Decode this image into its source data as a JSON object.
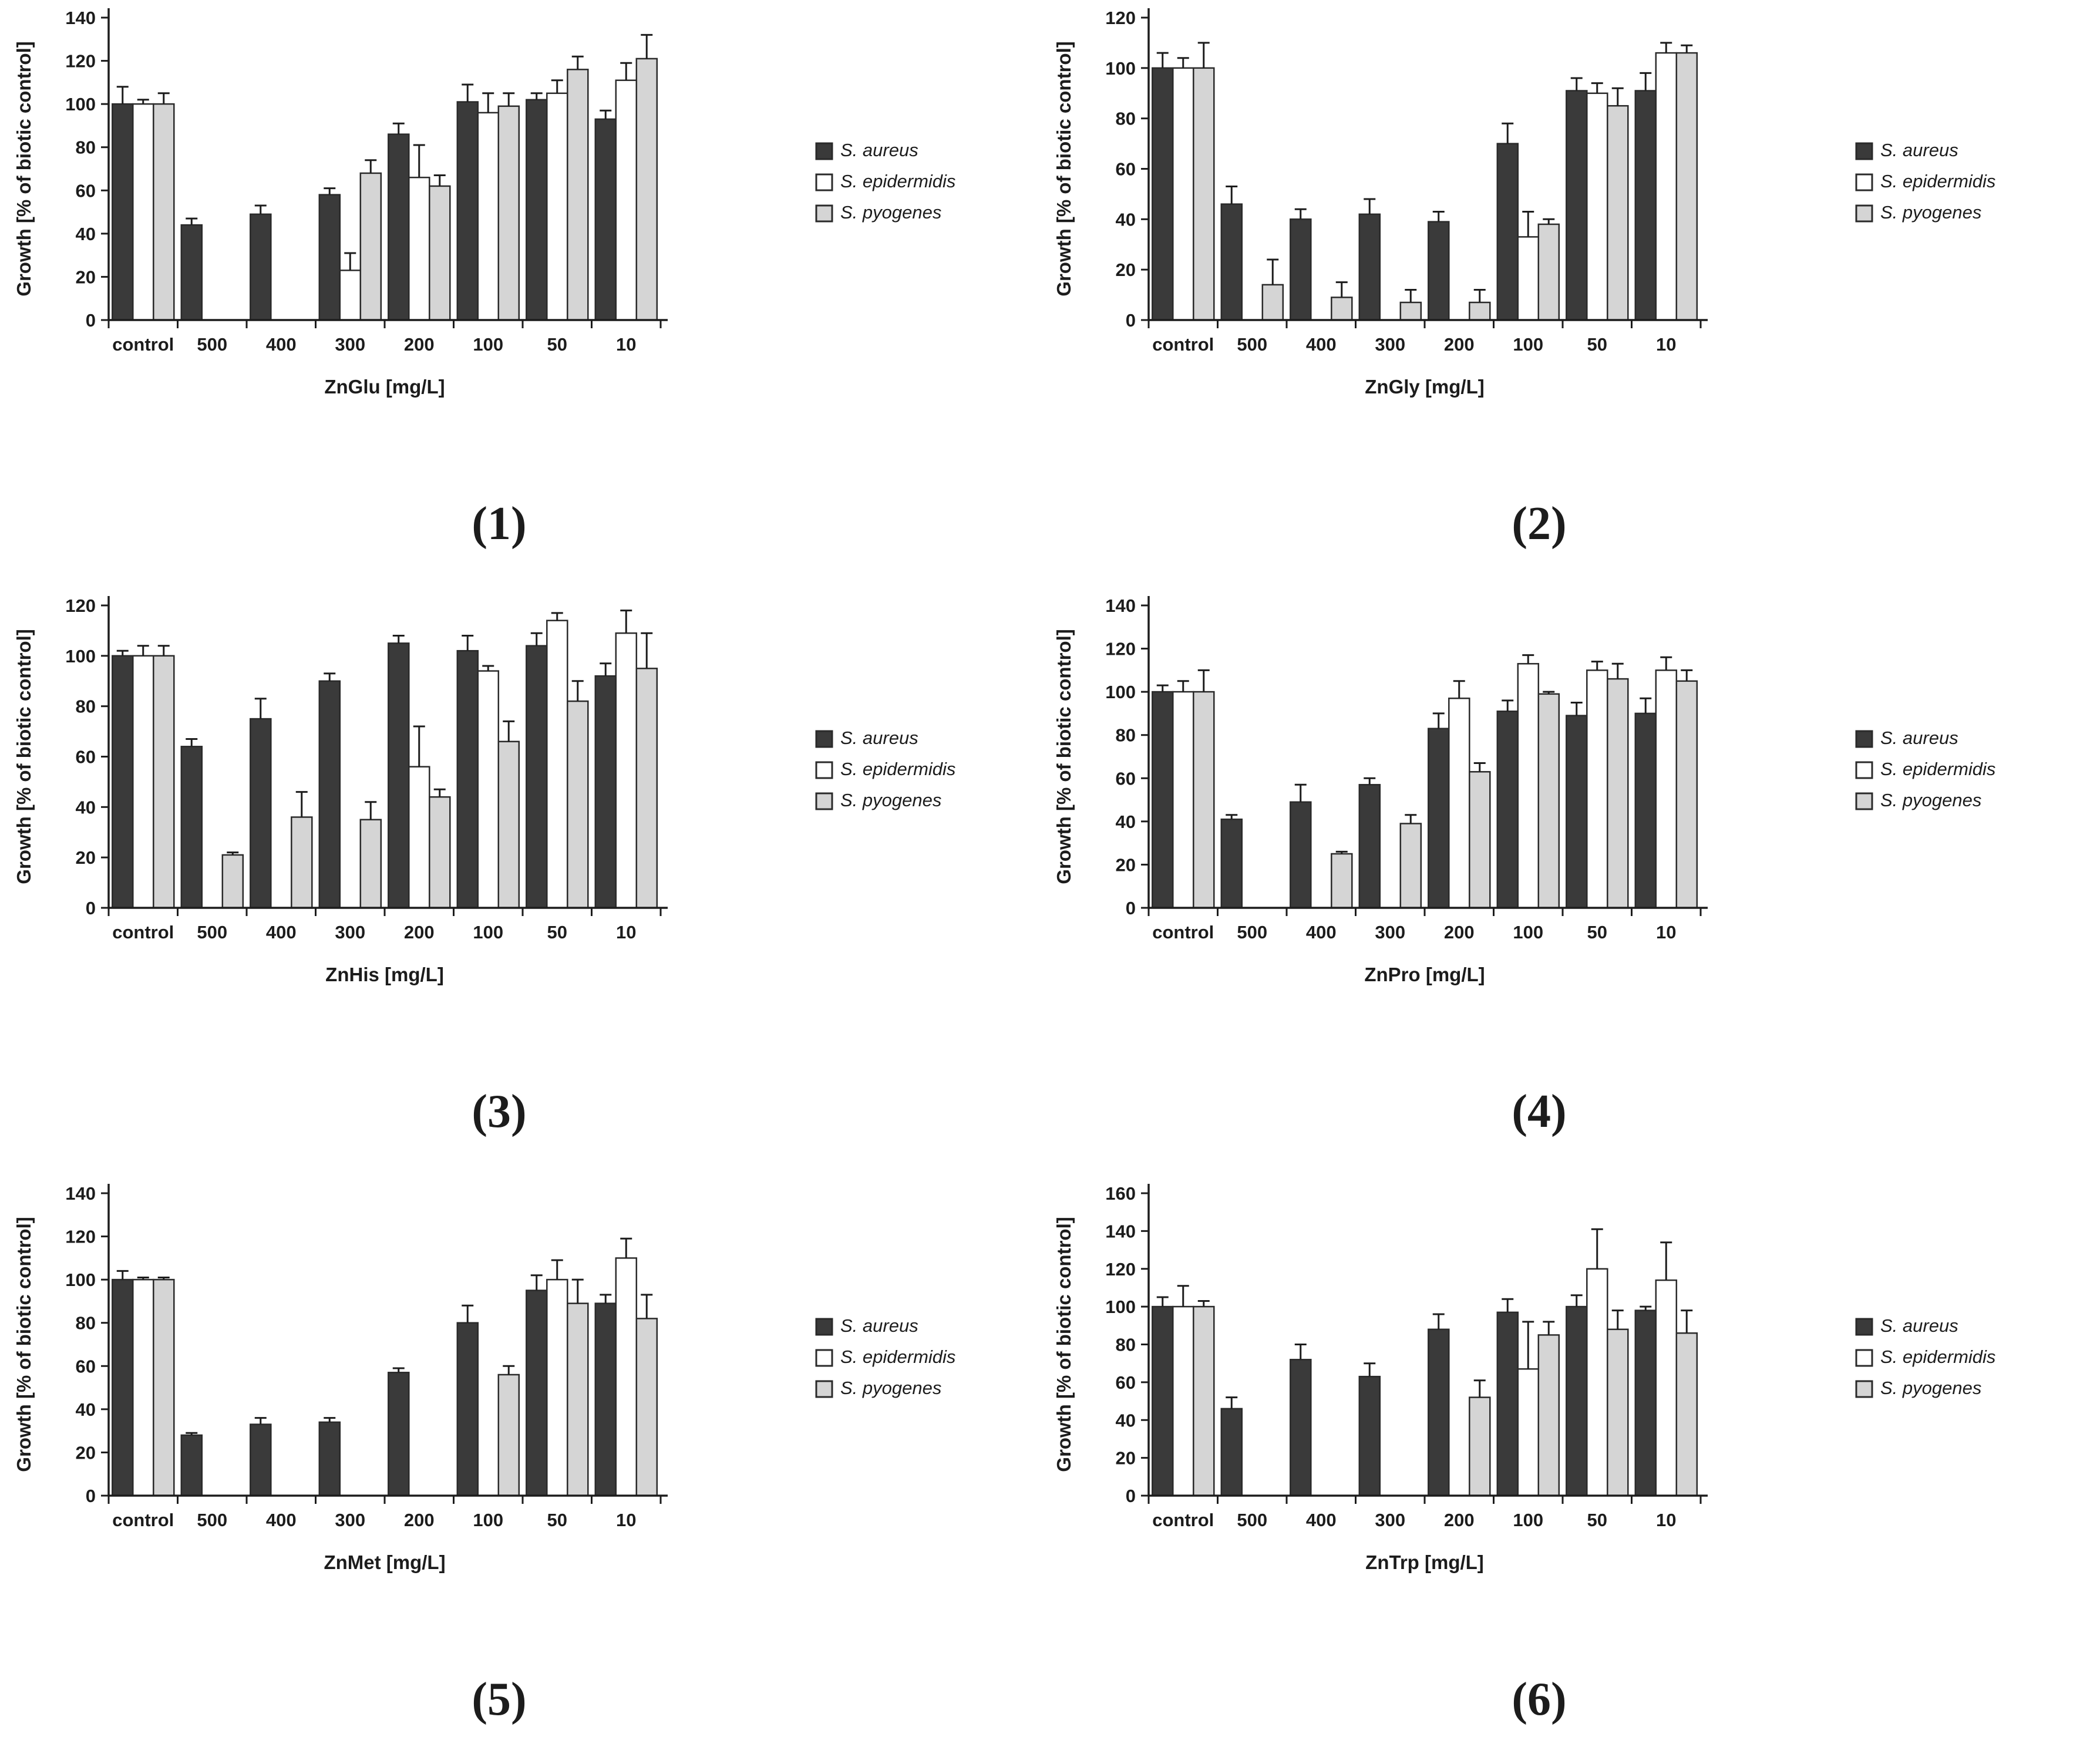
{
  "figure": {
    "ylabel": "Growth [% of biotic control]",
    "categories": [
      "control",
      "500",
      "400",
      "300",
      "200",
      "100",
      "50",
      "10"
    ],
    "legend_items": [
      "S. aureus",
      "S. epidermidis",
      "S. pyogenes"
    ],
    "series_colors": [
      "#3a3a3a",
      "#ffffff",
      "#d5d5d5"
    ],
    "bar_border_color": "#2a2a2a",
    "axis_color": "#1c1c1c",
    "text_color": "#1c1c1c"
  },
  "chart_data": [
    {
      "type": "bar",
      "panel_label": "(1)",
      "xlabel": "ZnGlu [mg/L]",
      "ylabel": "Growth [% of biotic control]",
      "categories": [
        "control",
        "500",
        "400",
        "300",
        "200",
        "100",
        "50",
        "10"
      ],
      "ylim": [
        0,
        140
      ],
      "ytick_step": 20,
      "grid": false,
      "legend_position": "right",
      "series": [
        {
          "name": "S. aureus",
          "values": [
            100,
            44,
            49,
            58,
            86,
            101,
            102,
            93
          ],
          "errors": [
            8,
            3,
            4,
            3,
            5,
            8,
            3,
            4
          ]
        },
        {
          "name": "S. epidermidis",
          "values": [
            100,
            0,
            0,
            23,
            66,
            96,
            105,
            111
          ],
          "errors": [
            2,
            0,
            0,
            8,
            15,
            9,
            6,
            8
          ]
        },
        {
          "name": "S. pyogenes",
          "values": [
            100,
            0,
            0,
            68,
            62,
            99,
            116,
            121
          ],
          "errors": [
            5,
            0,
            0,
            6,
            5,
            6,
            6,
            11
          ]
        }
      ]
    },
    {
      "type": "bar",
      "panel_label": "(2)",
      "xlabel": "ZnGly [mg/L]",
      "ylabel": "Growth [% of biotic control]",
      "categories": [
        "control",
        "500",
        "400",
        "300",
        "200",
        "100",
        "50",
        "10"
      ],
      "ylim": [
        0,
        120
      ],
      "ytick_step": 20,
      "grid": false,
      "legend_position": "right",
      "series": [
        {
          "name": "S. aureus",
          "values": [
            100,
            46,
            40,
            42,
            39,
            70,
            91,
            91
          ],
          "errors": [
            6,
            7,
            4,
            6,
            4,
            8,
            5,
            7
          ]
        },
        {
          "name": "S. epidermidis",
          "values": [
            100,
            0,
            0,
            0,
            0,
            33,
            90,
            106
          ],
          "errors": [
            4,
            0,
            0,
            0,
            0,
            10,
            4,
            4
          ]
        },
        {
          "name": "S. pyogenes",
          "values": [
            100,
            14,
            9,
            7,
            7,
            38,
            85,
            106
          ],
          "errors": [
            10,
            10,
            6,
            5,
            5,
            2,
            7,
            3
          ]
        }
      ]
    },
    {
      "type": "bar",
      "panel_label": "(3)",
      "xlabel": "ZnHis [mg/L]",
      "ylabel": "Growth [% of biotic control]",
      "categories": [
        "control",
        "500",
        "400",
        "300",
        "200",
        "100",
        "50",
        "10"
      ],
      "ylim": [
        0,
        120
      ],
      "ytick_step": 20,
      "grid": false,
      "legend_position": "right",
      "series": [
        {
          "name": "S. aureus",
          "values": [
            100,
            64,
            75,
            90,
            105,
            102,
            104,
            92
          ],
          "errors": [
            2,
            3,
            8,
            3,
            3,
            6,
            5,
            5
          ]
        },
        {
          "name": "S. epidermidis",
          "values": [
            100,
            0,
            0,
            0,
            56,
            94,
            114,
            109
          ],
          "errors": [
            4,
            0,
            0,
            0,
            16,
            2,
            3,
            9
          ]
        },
        {
          "name": "S. pyogenes",
          "values": [
            100,
            21,
            36,
            35,
            44,
            66,
            82,
            95
          ],
          "errors": [
            4,
            1,
            10,
            7,
            3,
            8,
            8,
            14
          ]
        }
      ]
    },
    {
      "type": "bar",
      "panel_label": "(4)",
      "xlabel": "ZnPro [mg/L]",
      "ylabel": "Growth [% of biotic control]",
      "categories": [
        "control",
        "500",
        "400",
        "300",
        "200",
        "100",
        "50",
        "10"
      ],
      "ylim": [
        0,
        140
      ],
      "ytick_step": 20,
      "grid": false,
      "legend_position": "right",
      "series": [
        {
          "name": "S. aureus",
          "values": [
            100,
            41,
            49,
            57,
            83,
            91,
            89,
            90
          ],
          "errors": [
            3,
            2,
            8,
            3,
            7,
            5,
            6,
            7
          ]
        },
        {
          "name": "S. epidermidis",
          "values": [
            100,
            0,
            0,
            0,
            97,
            113,
            110,
            110
          ],
          "errors": [
            5,
            0,
            0,
            0,
            8,
            4,
            4,
            6
          ]
        },
        {
          "name": "S. pyogenes",
          "values": [
            100,
            0,
            25,
            39,
            63,
            99,
            106,
            105
          ],
          "errors": [
            10,
            0,
            1,
            4,
            4,
            1,
            7,
            5
          ]
        }
      ]
    },
    {
      "type": "bar",
      "panel_label": "(5)",
      "xlabel": "ZnMet [mg/L]",
      "ylabel": "Growth [% of biotic control]",
      "categories": [
        "control",
        "500",
        "400",
        "300",
        "200",
        "100",
        "50",
        "10"
      ],
      "ylim": [
        0,
        140
      ],
      "ytick_step": 20,
      "grid": false,
      "legend_position": "right",
      "series": [
        {
          "name": "S. aureus",
          "values": [
            100,
            28,
            33,
            34,
            57,
            80,
            95,
            89
          ],
          "errors": [
            4,
            1,
            3,
            2,
            2,
            8,
            7,
            4
          ]
        },
        {
          "name": "S. epidermidis",
          "values": [
            100,
            0,
            0,
            0,
            0,
            0,
            100,
            110
          ],
          "errors": [
            1,
            0,
            0,
            0,
            0,
            0,
            9,
            9
          ]
        },
        {
          "name": "S. pyogenes",
          "values": [
            100,
            0,
            0,
            0,
            0,
            56,
            89,
            82
          ],
          "errors": [
            1,
            0,
            0,
            0,
            0,
            4,
            11,
            11
          ]
        }
      ]
    },
    {
      "type": "bar",
      "panel_label": "(6)",
      "xlabel": "ZnTrp [mg/L]",
      "ylabel": "Growth [% of biotic control]",
      "categories": [
        "control",
        "500",
        "400",
        "300",
        "200",
        "100",
        "50",
        "10"
      ],
      "ylim": [
        0,
        160
      ],
      "ytick_step": 20,
      "grid": false,
      "legend_position": "right",
      "series": [
        {
          "name": "S. aureus",
          "values": [
            100,
            46,
            72,
            63,
            88,
            97,
            100,
            98
          ],
          "errors": [
            5,
            6,
            8,
            7,
            8,
            7,
            6,
            2
          ]
        },
        {
          "name": "S. epidermidis",
          "values": [
            100,
            0,
            0,
            0,
            0,
            67,
            120,
            114
          ],
          "errors": [
            11,
            0,
            0,
            0,
            0,
            25,
            21,
            20
          ]
        },
        {
          "name": "S. pyogenes",
          "values": [
            100,
            0,
            0,
            0,
            52,
            85,
            88,
            86
          ],
          "errors": [
            3,
            0,
            0,
            0,
            9,
            7,
            10,
            12
          ]
        }
      ]
    }
  ]
}
